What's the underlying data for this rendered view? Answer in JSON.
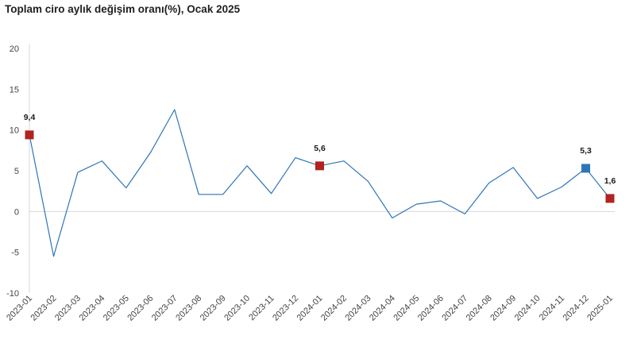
{
  "chart_data": {
    "type": "line",
    "title": "Toplam ciro aylık değişim oranı(%), Ocak 2025",
    "xlabel": "",
    "ylabel": "",
    "ylim": [
      -10,
      20
    ],
    "yticks": [
      20,
      15,
      10,
      5,
      0,
      -5,
      -10
    ],
    "categories": [
      "2023-01",
      "2023-02",
      "2023-03",
      "2023-04",
      "2023-05",
      "2023-06",
      "2023-07",
      "2023-08",
      "2023-09",
      "2023-10",
      "2023-11",
      "2023-12",
      "2024-01",
      "2024-02",
      "2024-03",
      "2024-04",
      "2024-05",
      "2024-06",
      "2024-07",
      "2024-08",
      "2024-09",
      "2024-10",
      "2024-11",
      "2024-12",
      "2025-01"
    ],
    "series": [
      {
        "values": [
          9.4,
          -5.5,
          4.8,
          6.2,
          2.9,
          7.2,
          12.5,
          2.1,
          2.1,
          5.6,
          2.2,
          6.6,
          5.6,
          6.2,
          3.7,
          -0.8,
          0.9,
          1.3,
          -0.3,
          3.5,
          5.4,
          1.6,
          3.0,
          5.3,
          1.6
        ],
        "color": "#2e75b6"
      }
    ],
    "highlighted_points": [
      {
        "category": "2023-01",
        "label": "9,4",
        "color": "#b22222"
      },
      {
        "category": "2024-01",
        "label": "5,6",
        "color": "#b22222"
      },
      {
        "category": "2024-12",
        "label": "5,3",
        "color": "#2e75b6"
      },
      {
        "category": "2025-01",
        "label": "1,6",
        "color": "#b22222"
      }
    ],
    "grid": false,
    "zero_line_color": "#d9d9d9",
    "axis_color": "#d9d9d9"
  }
}
